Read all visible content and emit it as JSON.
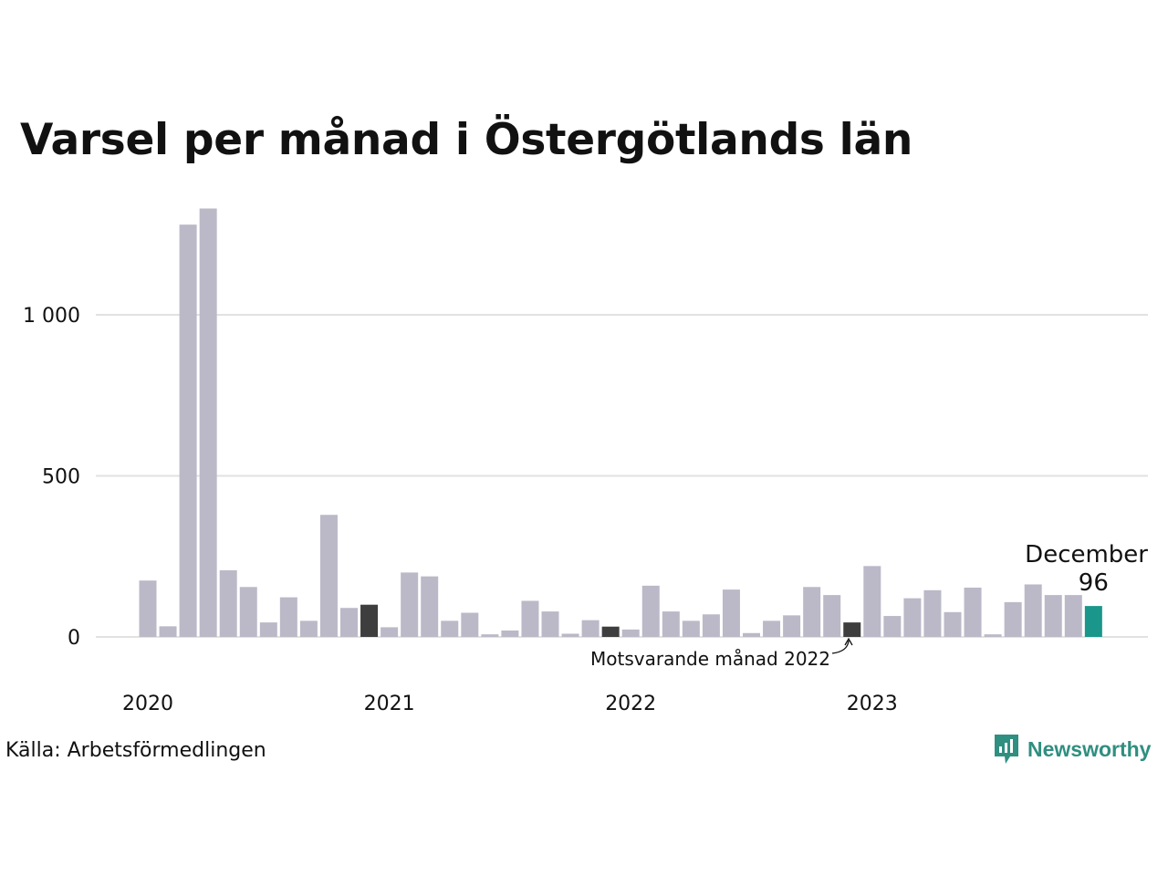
{
  "chart_data": {
    "type": "bar",
    "title": "Varsel per månad i Östergötlands län",
    "x_tick_labels": [
      "2020",
      "2021",
      "2022",
      "2023"
    ],
    "y_ticks": [
      0,
      500,
      1000
    ],
    "y_tick_labels": [
      "0",
      "500",
      "1 000"
    ],
    "ylim": [
      0,
      1330
    ],
    "grid": true,
    "values": [
      175,
      33,
      1280,
      1330,
      207,
      155,
      45,
      123,
      50,
      379,
      90,
      100,
      30,
      200,
      188,
      50,
      75,
      8,
      20,
      112,
      79,
      10,
      52,
      32,
      23,
      159,
      79,
      50,
      70,
      147,
      12,
      50,
      67,
      155,
      130,
      45,
      220,
      65,
      120,
      145,
      77,
      153,
      8,
      108,
      163,
      130,
      130,
      96
    ],
    "start": "2020-01",
    "highlight": {
      "label": "December",
      "value_label": "96"
    },
    "annotation": {
      "text": "Motsvarande månad 2022"
    },
    "colors": {
      "default": "#bbb9c7",
      "dark": "#3e3e3e",
      "highlight": "#1a968a",
      "grid": "#e2e2e2"
    }
  },
  "source": "Källa: Arbetsförmedlingen",
  "brand": {
    "name": "Newsworthy",
    "icon": "newsworthy-logo-icon",
    "color": "#2f8f80"
  }
}
